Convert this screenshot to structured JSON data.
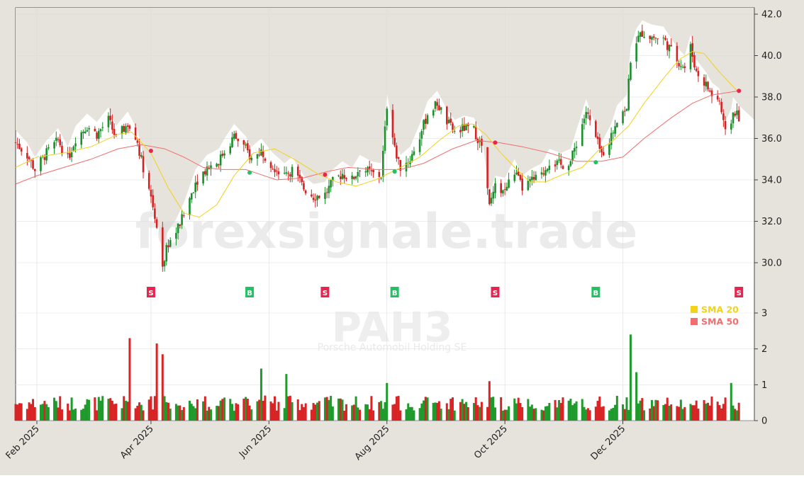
{
  "watermark": "forexsignale.trade",
  "ticker": "PAH3",
  "company": "Porsche Automobil Holding SE",
  "chart_data": [
    {
      "type": "candlestick",
      "ylim": [
        28.0,
        42.2
      ],
      "y_ticks": [
        "42.0",
        "40.0",
        "38.0",
        "36.0",
        "34.0",
        "32.0",
        "30.0"
      ],
      "x_ticks": [
        {
          "label": "Feb 2025",
          "date": "2025-02-01"
        },
        {
          "label": "Apr 2025",
          "date": "2025-04-01"
        },
        {
          "label": "Jun 2025",
          "date": "2025-06-01"
        },
        {
          "label": "Aug 2025",
          "date": "2025-08-01"
        },
        {
          "label": "Oct 2025",
          "date": "2025-10-01"
        },
        {
          "label": "Dec 2025",
          "date": "2025-12-01"
        }
      ],
      "x_range": [
        "2025-01-21",
        "2026-02-07"
      ],
      "legend": [
        {
          "label": "SMA 20",
          "color": "#f2d21b"
        },
        {
          "label": "SMA 50",
          "color": "#f26d6d"
        }
      ],
      "legend_position": "bottom-right",
      "colors": {
        "up": "#1a8f2a",
        "down": "#d42222",
        "shade": "#e6e3dc"
      },
      "grid": true,
      "price_path": [
        [
          "2025-01-21",
          35.8
        ],
        [
          "2025-01-27",
          35.2
        ],
        [
          "2025-01-31",
          34.5
        ],
        [
          "2025-02-06",
          35.3
        ],
        [
          "2025-02-12",
          35.9
        ],
        [
          "2025-02-17",
          35.0
        ],
        [
          "2025-02-21",
          36.0
        ],
        [
          "2025-02-27",
          36.6
        ],
        [
          "2025-03-04",
          36.2
        ],
        [
          "2025-03-10",
          36.9
        ],
        [
          "2025-03-14",
          36.0
        ],
        [
          "2025-03-20",
          36.7
        ],
        [
          "2025-03-25",
          35.8
        ],
        [
          "2025-03-28",
          34.6
        ],
        [
          "2025-04-01",
          33.2
        ],
        [
          "2025-04-04",
          31.8
        ],
        [
          "2025-04-07",
          29.6
        ],
        [
          "2025-04-09",
          30.8
        ],
        [
          "2025-04-14",
          31.5
        ],
        [
          "2025-04-18",
          32.3
        ],
        [
          "2025-04-24",
          33.9
        ],
        [
          "2025-04-30",
          34.6
        ],
        [
          "2025-05-06",
          34.9
        ],
        [
          "2025-05-09",
          35.4
        ],
        [
          "2025-05-14",
          36.1
        ],
        [
          "2025-05-20",
          35.5
        ],
        [
          "2025-05-23",
          35.0
        ],
        [
          "2025-05-28",
          35.4
        ],
        [
          "2025-06-03",
          34.7
        ],
        [
          "2025-06-09",
          34.2
        ],
        [
          "2025-06-13",
          34.5
        ],
        [
          "2025-06-19",
          33.6
        ],
        [
          "2025-06-24",
          33.2
        ],
        [
          "2025-06-30",
          33.3
        ],
        [
          "2025-07-04",
          33.9
        ],
        [
          "2025-07-09",
          34.3
        ],
        [
          "2025-07-14",
          34.0
        ],
        [
          "2025-07-18",
          34.6
        ],
        [
          "2025-07-24",
          34.3
        ],
        [
          "2025-07-29",
          34.2
        ],
        [
          "2025-07-31",
          36.4
        ],
        [
          "2025-08-01",
          37.6
        ],
        [
          "2025-08-05",
          35.5
        ],
        [
          "2025-08-08",
          34.6
        ],
        [
          "2025-08-13",
          35.0
        ],
        [
          "2025-08-18",
          36.1
        ],
        [
          "2025-08-22",
          37.2
        ],
        [
          "2025-08-27",
          37.7
        ],
        [
          "2025-09-01",
          36.8
        ],
        [
          "2025-09-05",
          36.3
        ],
        [
          "2025-09-10",
          36.5
        ],
        [
          "2025-09-15",
          36.4
        ],
        [
          "2025-09-19",
          35.6
        ],
        [
          "2025-09-23",
          32.7
        ],
        [
          "2025-09-26",
          33.6
        ],
        [
          "2025-10-01",
          33.5
        ],
        [
          "2025-10-06",
          34.4
        ],
        [
          "2025-10-10",
          33.6
        ],
        [
          "2025-10-14",
          33.9
        ],
        [
          "2025-10-20",
          34.2
        ],
        [
          "2025-10-24",
          34.9
        ],
        [
          "2025-10-30",
          34.7
        ],
        [
          "2025-11-04",
          34.9
        ],
        [
          "2025-11-07",
          35.8
        ],
        [
          "2025-11-12",
          37.3
        ],
        [
          "2025-11-17",
          36.0
        ],
        [
          "2025-11-20",
          35.2
        ],
        [
          "2025-11-25",
          36.1
        ],
        [
          "2025-11-28",
          37.0
        ],
        [
          "2025-12-03",
          37.5
        ],
        [
          "2025-12-05",
          39.8
        ],
        [
          "2025-12-08",
          40.7
        ],
        [
          "2025-12-11",
          41.1
        ],
        [
          "2025-12-16",
          40.9
        ],
        [
          "2025-12-22",
          40.8
        ],
        [
          "2025-12-29",
          39.8
        ],
        [
          "2026-01-02",
          39.4
        ],
        [
          "2026-01-05",
          40.4
        ],
        [
          "2026-01-08",
          39.2
        ],
        [
          "2026-01-13",
          38.6
        ],
        [
          "2026-01-16",
          38.1
        ],
        [
          "2026-01-20",
          37.8
        ],
        [
          "2026-01-22",
          36.7
        ],
        [
          "2026-01-24",
          35.7
        ],
        [
          "2026-01-27",
          37.4
        ],
        [
          "2026-01-30",
          37.0
        ]
      ],
      "sma20": [
        [
          "2025-01-21",
          34.6
        ],
        [
          "2025-02-01",
          35.1
        ],
        [
          "2025-02-15",
          35.3
        ],
        [
          "2025-03-01",
          35.6
        ],
        [
          "2025-03-15",
          36.2
        ],
        [
          "2025-03-22",
          36.3
        ],
        [
          "2025-04-01",
          35.3
        ],
        [
          "2025-04-10",
          33.6
        ],
        [
          "2025-04-18",
          32.4
        ],
        [
          "2025-04-26",
          32.2
        ],
        [
          "2025-05-05",
          32.8
        ],
        [
          "2025-05-14",
          34.2
        ],
        [
          "2025-05-24",
          35.3
        ],
        [
          "2025-06-04",
          35.5
        ],
        [
          "2025-06-14",
          35.0
        ],
        [
          "2025-06-26",
          34.3
        ],
        [
          "2025-07-06",
          33.9
        ],
        [
          "2025-07-16",
          33.7
        ],
        [
          "2025-07-26",
          34.0
        ],
        [
          "2025-08-06",
          34.5
        ],
        [
          "2025-08-18",
          35.1
        ],
        [
          "2025-08-28",
          35.9
        ],
        [
          "2025-09-07",
          36.6
        ],
        [
          "2025-09-14",
          36.7
        ],
        [
          "2025-09-21",
          36.2
        ],
        [
          "2025-09-28",
          35.4
        ],
        [
          "2025-10-06",
          34.6
        ],
        [
          "2025-10-14",
          33.9
        ],
        [
          "2025-10-22",
          33.9
        ],
        [
          "2025-11-01",
          34.3
        ],
        [
          "2025-11-10",
          34.6
        ],
        [
          "2025-11-18",
          35.4
        ],
        [
          "2025-11-26",
          35.9
        ],
        [
          "2025-12-04",
          36.6
        ],
        [
          "2025-12-12",
          37.7
        ],
        [
          "2025-12-22",
          38.9
        ],
        [
          "2025-12-30",
          39.8
        ],
        [
          "2026-01-06",
          40.2
        ],
        [
          "2026-01-12",
          40.1
        ],
        [
          "2026-01-19",
          39.3
        ],
        [
          "2026-01-26",
          38.6
        ],
        [
          "2026-01-30",
          38.2
        ]
      ],
      "sma50": [
        [
          "2025-01-21",
          33.8
        ],
        [
          "2025-02-01",
          34.2
        ],
        [
          "2025-02-15",
          34.6
        ],
        [
          "2025-03-01",
          35.0
        ],
        [
          "2025-03-15",
          35.5
        ],
        [
          "2025-03-27",
          35.7
        ],
        [
          "2025-04-08",
          35.5
        ],
        [
          "2025-04-18",
          35.1
        ],
        [
          "2025-04-28",
          34.6
        ],
        [
          "2025-05-08",
          34.5
        ],
        [
          "2025-05-20",
          34.5
        ],
        [
          "2025-06-05",
          34.0
        ],
        [
          "2025-06-19",
          34.1
        ],
        [
          "2025-07-01",
          34.4
        ],
        [
          "2025-07-12",
          34.6
        ],
        [
          "2025-07-26",
          34.5
        ],
        [
          "2025-08-08",
          34.5
        ],
        [
          "2025-08-20",
          34.8
        ],
        [
          "2025-09-04",
          35.5
        ],
        [
          "2025-09-16",
          35.9
        ],
        [
          "2025-09-28",
          35.8
        ],
        [
          "2025-10-10",
          35.6
        ],
        [
          "2025-10-24",
          35.3
        ],
        [
          "2025-11-07",
          34.9
        ],
        [
          "2025-11-20",
          34.9
        ],
        [
          "2025-12-01",
          35.1
        ],
        [
          "2025-12-12",
          36.0
        ],
        [
          "2025-12-26",
          37.0
        ],
        [
          "2026-01-06",
          37.7
        ],
        [
          "2026-01-16",
          38.1
        ],
        [
          "2026-01-30",
          38.3
        ]
      ],
      "signals": [
        {
          "date": "2025-04-01",
          "type": "S",
          "price": 35.4
        },
        {
          "date": "2025-05-22",
          "type": "B",
          "price": 34.35
        },
        {
          "date": "2025-06-30",
          "type": "S",
          "price": 34.25
        },
        {
          "date": "2025-08-05",
          "type": "B",
          "price": 34.4
        },
        {
          "date": "2025-09-26",
          "type": "S",
          "price": 35.8
        },
        {
          "date": "2025-11-17",
          "type": "B",
          "price": 34.85
        },
        {
          "date": "2026-01-30",
          "type": "S",
          "price": 38.3
        }
      ]
    },
    {
      "type": "bar",
      "series_name": "volume",
      "ylim": [
        0,
        3.5
      ],
      "y_ticks": [
        "3",
        "2",
        "1",
        "0"
      ],
      "spike_days": [
        {
          "date": "2025-03-21",
          "value": 2.3
        },
        {
          "date": "2025-04-04",
          "value": 2.15
        },
        {
          "date": "2025-04-07",
          "value": 1.85
        },
        {
          "date": "2025-05-28",
          "value": 1.45
        },
        {
          "date": "2025-06-10",
          "value": 1.3
        },
        {
          "date": "2025-08-01",
          "value": 1.05
        },
        {
          "date": "2025-09-23",
          "value": 1.1
        },
        {
          "date": "2025-12-05",
          "value": 2.4
        },
        {
          "date": "2025-12-08",
          "value": 1.35
        },
        {
          "date": "2026-01-26",
          "value": 1.05
        }
      ],
      "typical_value": 0.5
    }
  ]
}
